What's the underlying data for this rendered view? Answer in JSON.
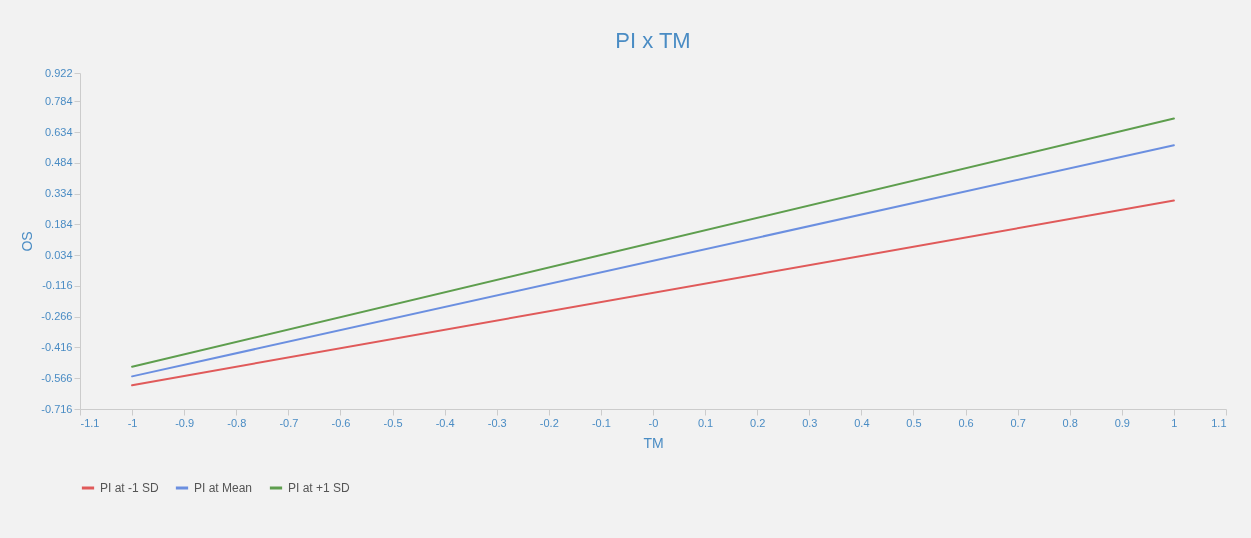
{
  "chart_data": {
    "type": "line",
    "title": "PI x TM",
    "xlabel": "TM",
    "ylabel": "OS",
    "x": [
      -1,
      1
    ],
    "series": [
      {
        "name": "PI at -1 SD",
        "color": "#e05a5a",
        "values": [
          -0.6,
          0.3
        ]
      },
      {
        "name": "PI at Mean",
        "color": "#6b8fe0",
        "values": [
          -0.557,
          0.57
        ]
      },
      {
        "name": "PI at +1 SD",
        "color": "#5e9e4e",
        "values": [
          -0.51,
          0.7
        ]
      }
    ],
    "xlim": [
      -1.1,
      1.1
    ],
    "xticks": [
      -1.1,
      -1,
      -0.9,
      -0.8,
      -0.7,
      -0.6,
      -0.5,
      -0.4,
      -0.3,
      -0.2,
      -0.1,
      {
        "value": 0,
        "label": "-0"
      },
      0.1,
      0.2,
      0.3,
      0.4,
      0.5,
      0.6,
      0.7,
      0.8,
      0.9,
      1,
      1.1
    ],
    "ylim": [
      -0.716,
      0.922
    ],
    "yticks": [
      -0.716,
      -0.566,
      -0.416,
      -0.266,
      -0.116,
      0.034,
      0.184,
      0.334,
      0.484,
      0.634,
      0.784,
      0.922
    ],
    "grid": false,
    "legend": "bottom",
    "marker": "none",
    "line_style": "solid"
  }
}
